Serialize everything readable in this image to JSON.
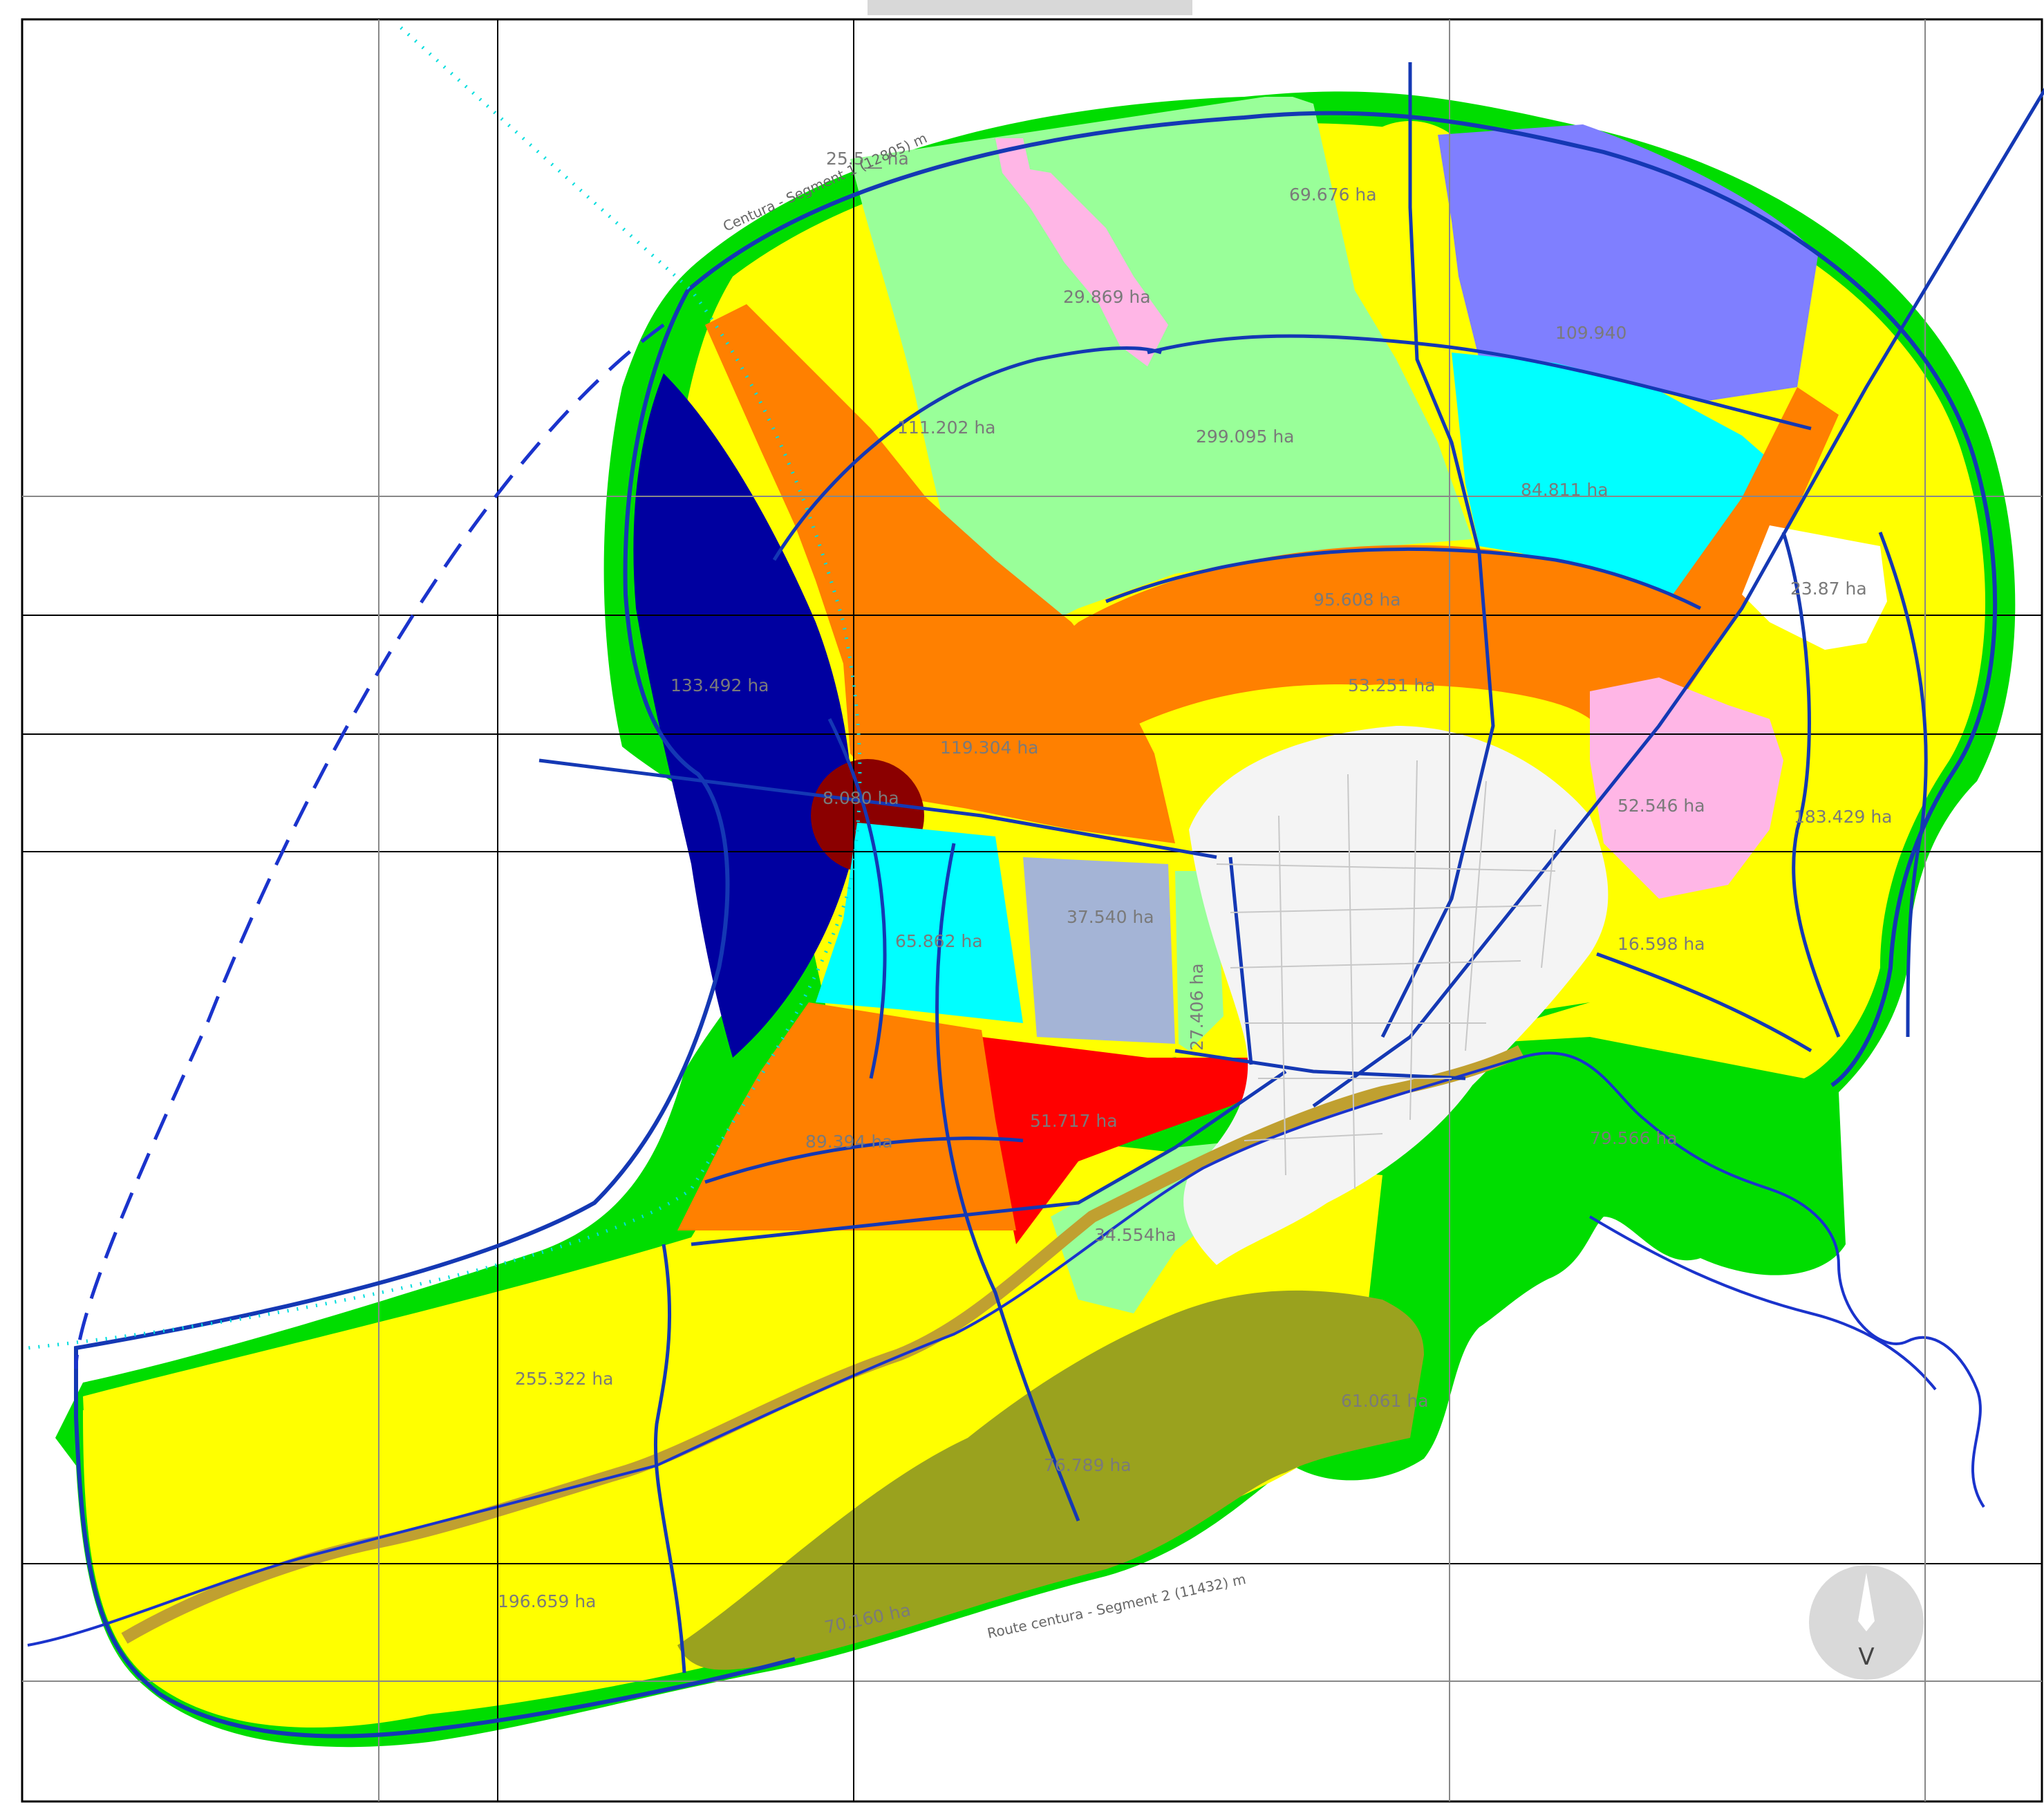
{
  "zones": [
    {
      "id": "z-2595",
      "label": "25.5__ ha",
      "color": "#ffff00"
    },
    {
      "id": "z-69676",
      "label": "69.676 ha",
      "color": "#ffff00"
    },
    {
      "id": "z-29869",
      "label": "29.869 ha",
      "color": "#ffb6e6"
    },
    {
      "id": "z-109940",
      "label": "109.940",
      "color": "#7f7fff"
    },
    {
      "id": "z-111202",
      "label": "111.202 ha",
      "color": "#ffff00"
    },
    {
      "id": "z-299095",
      "label": "299.095 ha",
      "color": "#99ff99"
    },
    {
      "id": "z-84811",
      "label": "84.811 ha",
      "color": "#00ffff"
    },
    {
      "id": "z-2387",
      "label": "23.87 ha",
      "color": "#ffffff"
    },
    {
      "id": "z-133492",
      "label": "133.492 ha",
      "color": "#0000a0"
    },
    {
      "id": "z-95608",
      "label": "95.608 ha",
      "color": "#ff8000"
    },
    {
      "id": "z-53251",
      "label": "53.251 ha",
      "color": "#ffff00"
    },
    {
      "id": "z-119304",
      "label": "119.304 ha",
      "color": "#ff8000"
    },
    {
      "id": "z-8080",
      "label": "8.080 ha",
      "color": "#8b0000"
    },
    {
      "id": "z-52546",
      "label": "52.546 ha",
      "color": "#ffb6e6"
    },
    {
      "id": "z-183429",
      "label": "183.429 ha",
      "color": "#ffff00"
    },
    {
      "id": "z-37540",
      "label": "37.540 ha",
      "color": "#a4b4d6"
    },
    {
      "id": "z-65862",
      "label": "65.862 ha",
      "color": "#00ffff"
    },
    {
      "id": "z-27406",
      "label": "27.406 ha",
      "color": "#99ff99"
    },
    {
      "id": "z-16598",
      "label": "16.598 ha",
      "color": "#ffff00"
    },
    {
      "id": "z-51717",
      "label": "51.717 ha",
      "color": "#ff0000"
    },
    {
      "id": "z-89394",
      "label": "89.394 ha",
      "color": "#ff8000"
    },
    {
      "id": "z-79566",
      "label": "79.566 ha",
      "color": "#00dd00"
    },
    {
      "id": "z-34554",
      "label": "34.554ha",
      "color": "#99ff99"
    },
    {
      "id": "z-255322",
      "label": "255.322 ha",
      "color": "#ffff00"
    },
    {
      "id": "z-61061",
      "label": "61.061 ha",
      "color": "#00dd00"
    },
    {
      "id": "z-76789",
      "label": "76.789 ha",
      "color": "#9aa21e"
    },
    {
      "id": "z-196659",
      "label": "196.659 ha",
      "color": "#ffff00"
    },
    {
      "id": "z-70160",
      "label": "70.160 ha",
      "color": "#9aa21e"
    }
  ],
  "road_labels": {
    "north": "Centura - Segment 1 (12805) m",
    "south": "Route centura - Segment 2 (11432) m"
  },
  "compass": {
    "letter": "V"
  }
}
